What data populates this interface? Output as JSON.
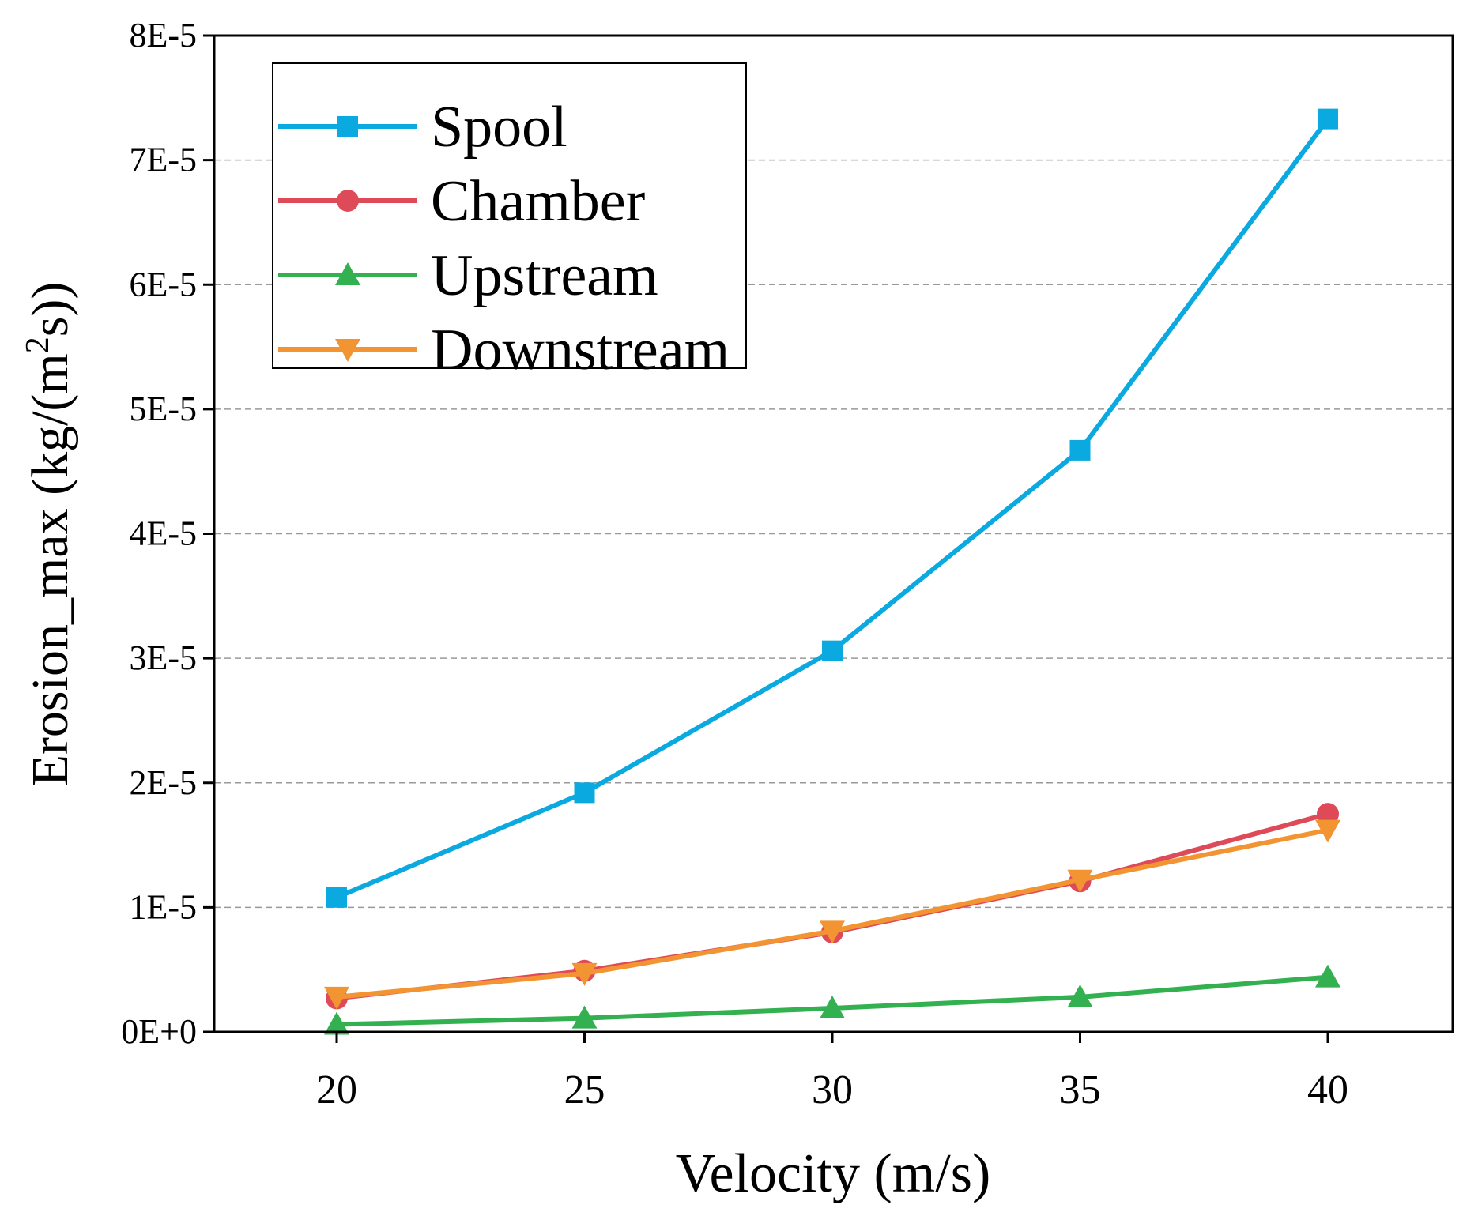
{
  "chart_data": {
    "type": "line",
    "title": "",
    "xlabel": "Velocity (m/s)",
    "ylabel_main": "Erosion_max  (kg/(m",
    "ylabel_sup": "2",
    "ylabel_tail": "s))",
    "x": [
      20,
      25,
      30,
      35,
      40
    ],
    "xlim": [
      17.5,
      42.5
    ],
    "ylim": [
      0,
      8e-05
    ],
    "xticks": [
      "20",
      "25",
      "30",
      "35",
      "40"
    ],
    "yticks": [
      "0E+0",
      "1E-5",
      "2E-5",
      "3E-5",
      "4E-5",
      "5E-5",
      "6E-5",
      "7E-5",
      "8E-5"
    ],
    "grid": "horizontal dashed",
    "legend_position": "top-left",
    "series": [
      {
        "name": "Spool",
        "color": "#0aa9e0",
        "marker": "square",
        "values": [
          1.08e-05,
          1.92e-05,
          3.06e-05,
          4.67e-05,
          7.33e-05
        ]
      },
      {
        "name": "Chamber",
        "color": "#de4a58",
        "marker": "circle",
        "values": [
          2.7e-06,
          4.9e-06,
          8e-06,
          1.21e-05,
          1.75e-05
        ]
      },
      {
        "name": "Upstream",
        "color": "#33b04f",
        "marker": "triangle-up",
        "values": [
          6e-07,
          1.1e-06,
          1.9e-06,
          2.8e-06,
          4.4e-06
        ]
      },
      {
        "name": "Downstream",
        "color": "#f39433",
        "marker": "triangle-down",
        "values": [
          2.8e-06,
          4.7e-06,
          8.1e-06,
          1.22e-05,
          1.62e-05
        ]
      }
    ]
  }
}
